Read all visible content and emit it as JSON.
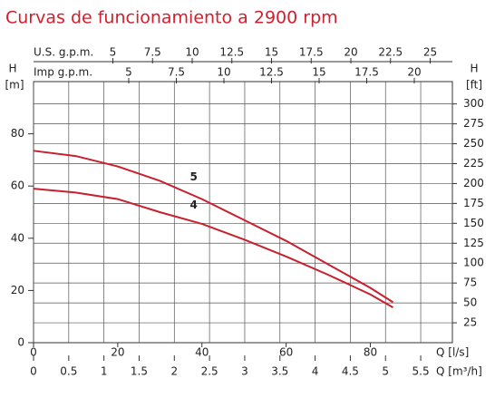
{
  "chart_data": {
    "type": "line",
    "title": "Curvas de funcionamiento a 2900 rpm",
    "xlabel": "Q [l/s]",
    "xlim": [
      0,
      99.5
    ],
    "xticks": [
      0,
      20,
      40,
      60,
      80
    ],
    "x2label": "Q [m³/h]",
    "x2lim": [
      0,
      5.95
    ],
    "x2ticks": [
      0,
      0.5,
      1,
      1.5,
      2,
      2.5,
      3,
      3.5,
      4,
      4.5,
      5,
      5.5
    ],
    "ylabel": "H",
    "yunit": "[m]",
    "ylim": [
      0,
      100
    ],
    "yticks": [
      0,
      20,
      40,
      60,
      80
    ],
    "y2label": "H",
    "y2unit": "[ft]",
    "y2lim": [
      0,
      328.08
    ],
    "y2ticks": [
      25,
      50,
      75,
      100,
      125,
      150,
      175,
      200,
      225,
      250,
      275,
      300
    ],
    "top_axes": [
      {
        "label": "U.S. g.p.m.",
        "lim": [
          0,
          26.4
        ],
        "ticks": [
          5,
          7.5,
          10,
          12.5,
          15,
          17.5,
          20,
          22.5,
          25
        ]
      },
      {
        "label": "Imp g.p.m.",
        "lim": [
          0,
          22
        ],
        "ticks": [
          5,
          7.5,
          10,
          12.5,
          15,
          17.5,
          20
        ]
      }
    ],
    "grid": true,
    "x": [
      0,
      10,
      20,
      30,
      40,
      50,
      60,
      70,
      80,
      85.4
    ],
    "series": [
      {
        "name": "5",
        "color": "#c8202e",
        "values": [
          73.5,
          71.5,
          67.5,
          62,
          55,
          47,
          39,
          30,
          21,
          15.5
        ]
      },
      {
        "name": "4",
        "color": "#c8202e",
        "values": [
          59,
          57.5,
          55,
          50,
          45.5,
          39.5,
          33,
          26,
          18.5,
          13.5
        ]
      }
    ]
  }
}
